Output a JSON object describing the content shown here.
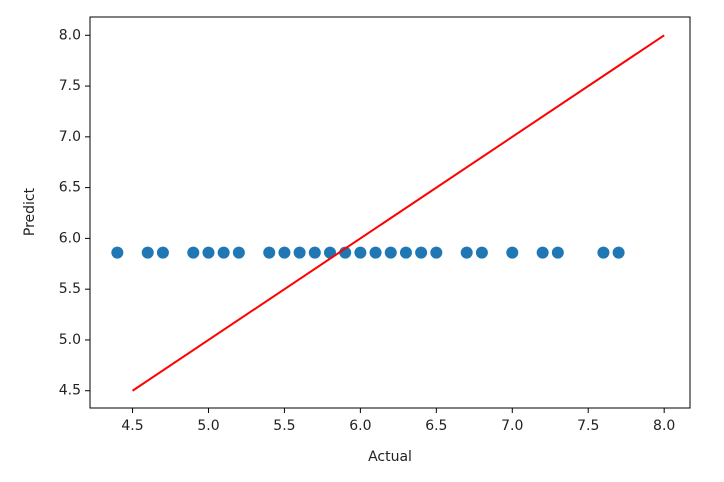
{
  "chart_data": {
    "type": "scatter",
    "xlabel": "Actual",
    "ylabel": "Predict",
    "xlim": [
      4.22,
      8.17
    ],
    "ylim": [
      4.33,
      8.18
    ],
    "xticks": [
      4.5,
      {
        "value": 5,
        "label": "5.0"
      },
      5.5,
      {
        "value": 6,
        "label": "6.0"
      },
      6.5,
      {
        "value": 7,
        "label": "7.0"
      },
      7.5,
      {
        "value": 8,
        "label": "8.0"
      }
    ],
    "yticks": [
      4.5,
      {
        "value": 5,
        "label": "5.0"
      },
      5.5,
      {
        "value": 6,
        "label": "6.0"
      },
      6.5,
      {
        "value": 7,
        "label": "7.0"
      },
      7.5,
      {
        "value": 8,
        "label": "8.0"
      }
    ],
    "series": [
      {
        "type": "scatter",
        "color": "#1f77b4",
        "x": [
          4.4,
          4.6,
          4.7,
          4.9,
          5.0,
          5.1,
          5.2,
          5.4,
          5.5,
          5.6,
          5.7,
          5.8,
          5.9,
          6.0,
          6.1,
          6.2,
          6.3,
          6.4,
          6.5,
          6.7,
          6.8,
          7.0,
          7.2,
          7.3,
          7.6,
          7.7
        ],
        "values": [
          5.86,
          5.86,
          5.86,
          5.86,
          5.86,
          5.86,
          5.86,
          5.86,
          5.86,
          5.86,
          5.86,
          5.86,
          5.86,
          5.86,
          5.86,
          5.86,
          5.86,
          5.86,
          5.86,
          5.86,
          5.86,
          5.86,
          5.86,
          5.86,
          5.86,
          5.86
        ]
      },
      {
        "type": "line",
        "color": "#ff0000",
        "x": [
          4.5,
          8.0
        ],
        "values": [
          4.5,
          8.0
        ]
      }
    ]
  }
}
